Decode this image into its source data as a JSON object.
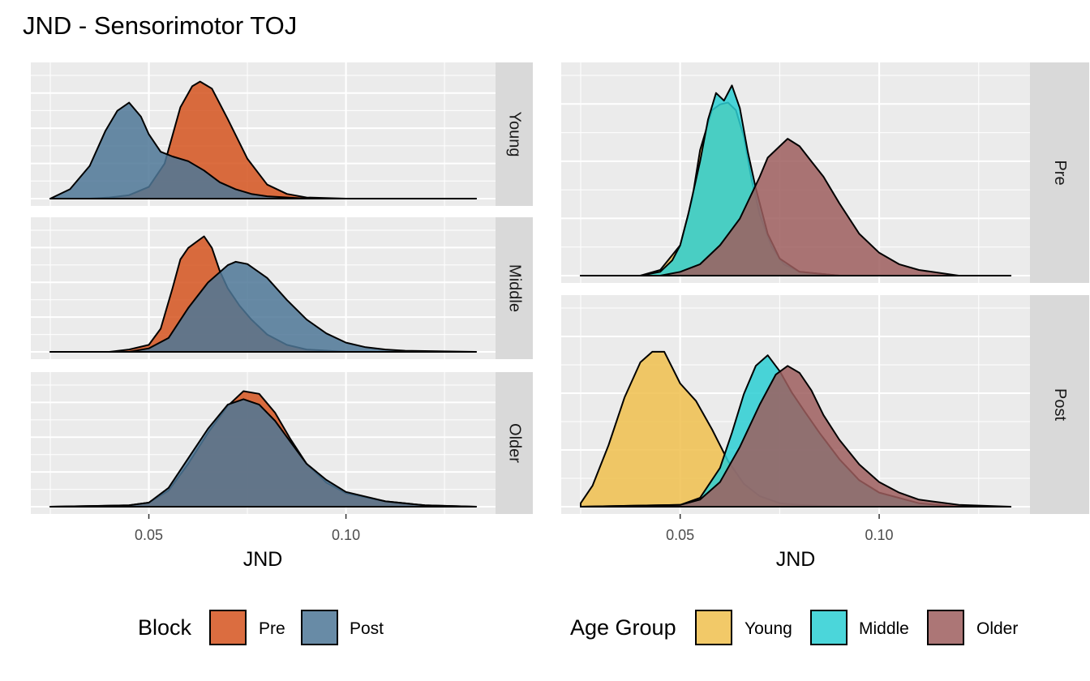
{
  "title": "JND - Sensorimotor TOJ",
  "colors": {
    "pre": "#D5541E",
    "post": "#4E7797",
    "young": "#F0C04E",
    "middle": "#2CCFD4",
    "older": "#9E5E5E",
    "panel_bg": "#EBEBEB",
    "strip_bg": "#D9D9D9",
    "grid": "#FFFFFF"
  },
  "chart_data": [
    {
      "type": "area",
      "chart": "density-ridge",
      "xlabel": "JND",
      "xlim": [
        0.025,
        0.133
      ],
      "xticks": [
        0.05,
        0.1
      ],
      "xtick_labels": [
        "0.05",
        "0.10"
      ],
      "facets": [
        "Young",
        "Middle",
        "Older"
      ],
      "legend": {
        "title": "Block",
        "position": "bottom",
        "items": [
          "Pre",
          "Post"
        ]
      },
      "series": [
        {
          "name": "Pre",
          "facet": "Young",
          "color": "#D5541E",
          "x": [
            0.025,
            0.035,
            0.04,
            0.045,
            0.05,
            0.054,
            0.058,
            0.061,
            0.063,
            0.066,
            0.07,
            0.075,
            0.08,
            0.085,
            0.09,
            0.1,
            0.133
          ],
          "y": [
            0.0,
            0.0,
            0.01,
            0.03,
            0.1,
            0.3,
            0.78,
            0.96,
            1.0,
            0.94,
            0.68,
            0.34,
            0.12,
            0.04,
            0.01,
            0.0,
            0.0
          ]
        },
        {
          "name": "Post",
          "facet": "Young",
          "color": "#4E7797",
          "x": [
            0.025,
            0.03,
            0.035,
            0.039,
            0.042,
            0.045,
            0.048,
            0.05,
            0.053,
            0.056,
            0.06,
            0.064,
            0.068,
            0.072,
            0.076,
            0.08,
            0.09,
            0.133
          ],
          "y": [
            0.0,
            0.08,
            0.28,
            0.58,
            0.75,
            0.82,
            0.7,
            0.55,
            0.4,
            0.36,
            0.32,
            0.24,
            0.14,
            0.08,
            0.04,
            0.02,
            0.0,
            0.0
          ]
        },
        {
          "name": "Pre",
          "facet": "Middle",
          "color": "#D5541E",
          "x": [
            0.025,
            0.04,
            0.045,
            0.05,
            0.053,
            0.056,
            0.058,
            0.06,
            0.062,
            0.064,
            0.066,
            0.068,
            0.07,
            0.073,
            0.076,
            0.08,
            0.085,
            0.09,
            0.1,
            0.133
          ],
          "y": [
            0.0,
            0.0,
            0.02,
            0.06,
            0.2,
            0.55,
            0.8,
            0.9,
            0.95,
            1.0,
            0.9,
            0.7,
            0.55,
            0.4,
            0.28,
            0.15,
            0.06,
            0.02,
            0.0,
            0.0
          ]
        },
        {
          "name": "Post",
          "facet": "Middle",
          "color": "#4E7797",
          "x": [
            0.025,
            0.045,
            0.05,
            0.055,
            0.06,
            0.065,
            0.07,
            0.072,
            0.075,
            0.08,
            0.085,
            0.09,
            0.095,
            0.1,
            0.105,
            0.11,
            0.115,
            0.133
          ],
          "y": [
            0.0,
            0.0,
            0.03,
            0.12,
            0.38,
            0.6,
            0.75,
            0.78,
            0.76,
            0.64,
            0.45,
            0.28,
            0.16,
            0.08,
            0.04,
            0.02,
            0.01,
            0.0
          ]
        },
        {
          "name": "Pre",
          "facet": "Older",
          "color": "#D5541E",
          "x": [
            0.025,
            0.045,
            0.05,
            0.055,
            0.06,
            0.065,
            0.07,
            0.074,
            0.078,
            0.082,
            0.086,
            0.09,
            0.095,
            0.1,
            0.11,
            0.12,
            0.133
          ],
          "y": [
            0.0,
            0.01,
            0.03,
            0.12,
            0.32,
            0.55,
            0.75,
            0.86,
            0.84,
            0.7,
            0.5,
            0.32,
            0.18,
            0.1,
            0.04,
            0.01,
            0.0
          ]
        },
        {
          "name": "Post",
          "facet": "Older",
          "color": "#4E7797",
          "x": [
            0.025,
            0.045,
            0.05,
            0.055,
            0.06,
            0.065,
            0.07,
            0.074,
            0.078,
            0.082,
            0.086,
            0.09,
            0.095,
            0.1,
            0.11,
            0.12,
            0.133
          ],
          "y": [
            0.0,
            0.01,
            0.03,
            0.14,
            0.36,
            0.58,
            0.76,
            0.8,
            0.76,
            0.64,
            0.48,
            0.32,
            0.2,
            0.11,
            0.04,
            0.01,
            0.0
          ]
        }
      ]
    },
    {
      "type": "area",
      "chart": "density-ridge",
      "xlabel": "JND",
      "xlim": [
        0.025,
        0.133
      ],
      "xticks": [
        0.05,
        0.1
      ],
      "xtick_labels": [
        "0.05",
        "0.10"
      ],
      "facets": [
        "Pre",
        "Post"
      ],
      "legend": {
        "title": "Age Group",
        "position": "bottom",
        "items": [
          "Young",
          "Middle",
          "Older"
        ]
      },
      "series": [
        {
          "name": "Young",
          "facet": "Pre",
          "color": "#F0C04E",
          "x": [
            0.025,
            0.04,
            0.045,
            0.05,
            0.053,
            0.055,
            0.058,
            0.06,
            0.062,
            0.064,
            0.066,
            0.068,
            0.07,
            0.073,
            0.076,
            0.08,
            0.09,
            0.133
          ],
          "y": [
            0.0,
            0.0,
            0.03,
            0.16,
            0.4,
            0.66,
            0.87,
            0.9,
            0.91,
            0.87,
            0.73,
            0.5,
            0.32,
            0.15,
            0.06,
            0.02,
            0.0,
            0.0
          ]
        },
        {
          "name": "Middle",
          "facet": "Pre",
          "color": "#2CCFD4",
          "x": [
            0.025,
            0.04,
            0.045,
            0.048,
            0.05,
            0.052,
            0.055,
            0.057,
            0.059,
            0.061,
            0.063,
            0.065,
            0.067,
            0.069,
            0.072,
            0.075,
            0.08,
            0.09,
            0.133
          ],
          "y": [
            0.0,
            0.0,
            0.02,
            0.08,
            0.16,
            0.32,
            0.6,
            0.82,
            0.96,
            0.92,
            1.0,
            0.88,
            0.65,
            0.46,
            0.22,
            0.09,
            0.02,
            0.0,
            0.0
          ]
        },
        {
          "name": "Older",
          "facet": "Pre",
          "color": "#9E5E5E",
          "x": [
            0.025,
            0.045,
            0.05,
            0.055,
            0.06,
            0.065,
            0.07,
            0.072,
            0.075,
            0.077,
            0.08,
            0.083,
            0.086,
            0.09,
            0.095,
            0.1,
            0.105,
            0.11,
            0.12,
            0.133
          ],
          "y": [
            0.0,
            0.0,
            0.02,
            0.06,
            0.16,
            0.3,
            0.52,
            0.62,
            0.68,
            0.72,
            0.68,
            0.6,
            0.52,
            0.38,
            0.22,
            0.12,
            0.06,
            0.03,
            0.0,
            0.0
          ]
        },
        {
          "name": "Young",
          "facet": "Post",
          "color": "#F0C04E",
          "x": [
            0.025,
            0.028,
            0.032,
            0.036,
            0.04,
            0.043,
            0.046,
            0.048,
            0.05,
            0.054,
            0.058,
            0.062,
            0.066,
            0.07,
            0.075,
            0.08,
            0.09,
            0.133
          ],
          "y": [
            0.02,
            0.12,
            0.35,
            0.62,
            0.82,
            0.88,
            0.88,
            0.79,
            0.7,
            0.6,
            0.44,
            0.26,
            0.13,
            0.06,
            0.02,
            0.01,
            0.0,
            0.0
          ]
        },
        {
          "name": "Middle",
          "facet": "Post",
          "color": "#2CCFD4",
          "x": [
            0.025,
            0.05,
            0.055,
            0.06,
            0.063,
            0.066,
            0.069,
            0.072,
            0.075,
            0.078,
            0.081,
            0.085,
            0.09,
            0.095,
            0.1,
            0.11,
            0.12,
            0.133
          ],
          "y": [
            0.0,
            0.01,
            0.05,
            0.22,
            0.42,
            0.64,
            0.8,
            0.86,
            0.77,
            0.65,
            0.55,
            0.42,
            0.27,
            0.15,
            0.08,
            0.02,
            0.0,
            0.0
          ]
        },
        {
          "name": "Older",
          "facet": "Post",
          "color": "#9E5E5E",
          "x": [
            0.025,
            0.05,
            0.055,
            0.06,
            0.065,
            0.07,
            0.074,
            0.077,
            0.08,
            0.083,
            0.086,
            0.09,
            0.095,
            0.1,
            0.105,
            0.11,
            0.12,
            0.133
          ],
          "y": [
            0.0,
            0.01,
            0.04,
            0.14,
            0.34,
            0.58,
            0.75,
            0.8,
            0.76,
            0.66,
            0.52,
            0.38,
            0.24,
            0.14,
            0.08,
            0.04,
            0.01,
            0.0
          ]
        }
      ]
    }
  ]
}
